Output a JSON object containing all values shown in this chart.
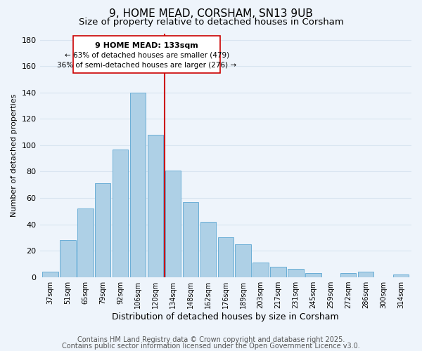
{
  "title": "9, HOME MEAD, CORSHAM, SN13 9UB",
  "subtitle": "Size of property relative to detached houses in Corsham",
  "xlabel": "Distribution of detached houses by size in Corsham",
  "ylabel": "Number of detached properties",
  "bar_labels": [
    "37sqm",
    "51sqm",
    "65sqm",
    "79sqm",
    "92sqm",
    "106sqm",
    "120sqm",
    "134sqm",
    "148sqm",
    "162sqm",
    "176sqm",
    "189sqm",
    "203sqm",
    "217sqm",
    "231sqm",
    "245sqm",
    "259sqm",
    "272sqm",
    "286sqm",
    "300sqm",
    "314sqm"
  ],
  "bar_values": [
    4,
    28,
    52,
    71,
    97,
    140,
    108,
    81,
    57,
    42,
    30,
    25,
    11,
    8,
    6,
    3,
    0,
    3,
    4,
    0,
    2
  ],
  "bar_color": "#aed0e6",
  "bar_edge_color": "#6aaed6",
  "vline_color": "#cc0000",
  "annotation_title": "9 HOME MEAD: 133sqm",
  "annotation_line1": "← 63% of detached houses are smaller (479)",
  "annotation_line2": "36% of semi-detached houses are larger (276) →",
  "annotation_box_color": "#ffffff",
  "annotation_box_edge": "#cc0000",
  "ylim": [
    0,
    185
  ],
  "yticks": [
    0,
    20,
    40,
    60,
    80,
    100,
    120,
    140,
    160,
    180
  ],
  "footer1": "Contains HM Land Registry data © Crown copyright and database right 2025.",
  "footer2": "Contains public sector information licensed under the Open Government Licence v3.0.",
  "background_color": "#eef4fb",
  "grid_color": "#d8e4f0",
  "title_fontsize": 11,
  "subtitle_fontsize": 9.5,
  "footer_fontsize": 7,
  "vline_pos": 6.5
}
